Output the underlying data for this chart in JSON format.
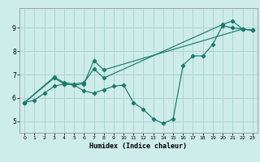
{
  "xlabel": "Humidex (Indice chaleur)",
  "bg_color": "#ceecea",
  "grid_color": "#aed4d0",
  "line_color": "#1a7a6e",
  "xlim": [
    -0.5,
    23.5
  ],
  "ylim": [
    4.5,
    9.85
  ],
  "xticks": [
    0,
    1,
    2,
    3,
    4,
    5,
    6,
    7,
    8,
    9,
    10,
    11,
    12,
    13,
    14,
    15,
    16,
    17,
    18,
    19,
    20,
    21,
    22,
    23
  ],
  "yticks": [
    5,
    6,
    7,
    8,
    9
  ],
  "line1_x": [
    0,
    1,
    2,
    3,
    4,
    5,
    6,
    7,
    8,
    9,
    10,
    11,
    12,
    13,
    14,
    15,
    16,
    17,
    18,
    19,
    20,
    21,
    22,
    23
  ],
  "line1_y": [
    5.8,
    5.9,
    6.2,
    6.5,
    6.6,
    6.55,
    6.3,
    6.2,
    6.35,
    6.5,
    6.55,
    5.8,
    5.5,
    5.1,
    4.9,
    5.1,
    7.4,
    7.8,
    7.8,
    8.3,
    9.1,
    9.0,
    8.95,
    8.9
  ],
  "line2_x": [
    0,
    3,
    4,
    5,
    6,
    7,
    8,
    22,
    23
  ],
  "line2_y": [
    5.8,
    6.85,
    6.6,
    6.55,
    6.6,
    7.6,
    7.2,
    8.95,
    8.9
  ],
  "line3_x": [
    0,
    3,
    4,
    5,
    6,
    7,
    8,
    20,
    21,
    22,
    23
  ],
  "line3_y": [
    5.8,
    6.9,
    6.65,
    6.6,
    6.65,
    7.25,
    6.85,
    9.15,
    9.3,
    8.95,
    8.9
  ]
}
